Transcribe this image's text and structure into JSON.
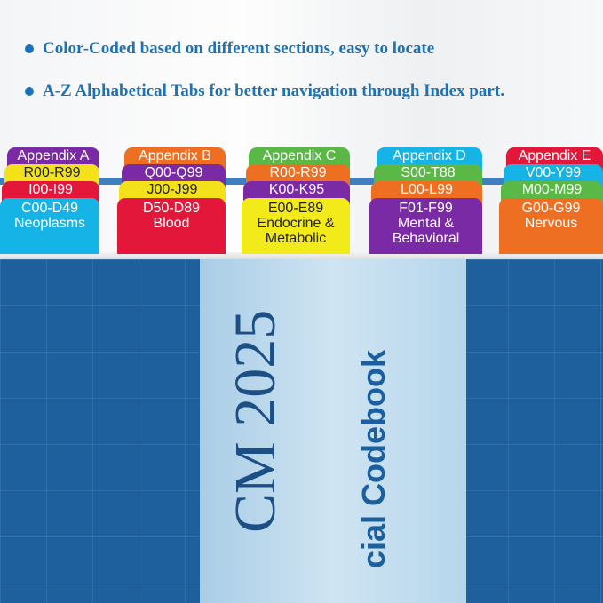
{
  "bullets": [
    "Color-Coded based on different sections, easy to locate",
    "A-Z Alphabetical Tabs for better navigation through Index part."
  ],
  "book": {
    "title": "CM 2025",
    "subtitle": "cial Codebook"
  },
  "tab_groups": [
    {
      "tabs": [
        {
          "label": "Appendix A",
          "color": "#7b2aa5"
        },
        {
          "label": "R00-R99",
          "color": "#f3e21a"
        },
        {
          "label": "I00-I99",
          "color": "#e3173a"
        },
        {
          "label": "C00-D49\nNeoplasms",
          "color": "#16b3e6"
        }
      ]
    },
    {
      "tabs": [
        {
          "label": "Appendix B",
          "color": "#ef6f22"
        },
        {
          "label": "Q00-Q99",
          "color": "#7b2aa5"
        },
        {
          "label": "J00-J99",
          "color": "#f3e21a"
        },
        {
          "label": "D50-D89\nBlood",
          "color": "#e3173a"
        }
      ]
    },
    {
      "tabs": [
        {
          "label": "Appendix C",
          "color": "#5ab946"
        },
        {
          "label": "R00-R99",
          "color": "#ef6f22"
        },
        {
          "label": "K00-K95",
          "color": "#7b2aa5"
        },
        {
          "label": "E00-E89\nEndocrine &\nMetabolic",
          "color": "#f3ea1a"
        }
      ]
    },
    {
      "tabs": [
        {
          "label": "Appendix D",
          "color": "#16b3e6"
        },
        {
          "label": "S00-T88",
          "color": "#5ab946"
        },
        {
          "label": "L00-L99",
          "color": "#ef6f22"
        },
        {
          "label": "F01-F99\nMental &\nBehavioral",
          "color": "#7b2aa5"
        }
      ]
    },
    {
      "tabs": [
        {
          "label": "Appendix E",
          "color": "#e3173a"
        },
        {
          "label": "V00-Y99",
          "color": "#16b3e6"
        },
        {
          "label": "M00-M99",
          "color": "#5ab946"
        },
        {
          "label": "G00-G99\nNervous",
          "color": "#ef6f22"
        }
      ]
    }
  ]
}
